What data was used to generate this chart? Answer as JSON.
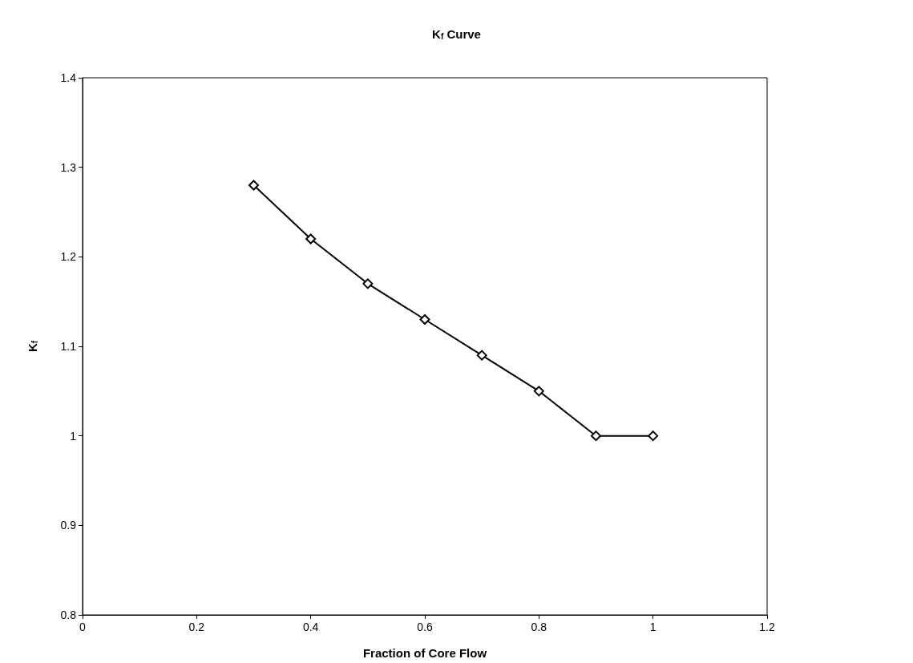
{
  "chart_data": {
    "type": "line",
    "title": "K$_{f}$ Curve",
    "xlabel": "Fraction of Core Flow",
    "ylabel": "K$_{f}$",
    "x": [
      0.3,
      0.4,
      0.5,
      0.6,
      0.7,
      0.8,
      0.9,
      1.0
    ],
    "series": [
      {
        "color": "#000000",
        "values": [
          1.28,
          1.22,
          1.17,
          1.13,
          1.09,
          1.05,
          1.0,
          1.0
        ]
      }
    ],
    "xlim": [
      0,
      1.2
    ],
    "xticks": [
      0,
      0.2,
      0.4,
      0.6,
      0.8,
      1,
      1.2
    ],
    "ylim": [
      0.8,
      1.4
    ],
    "yticks": [
      0.8,
      0.9,
      1,
      1.1,
      1.2,
      1.3,
      1.4
    ],
    "grid": false,
    "marker": "diamond",
    "line_style": "solid"
  }
}
